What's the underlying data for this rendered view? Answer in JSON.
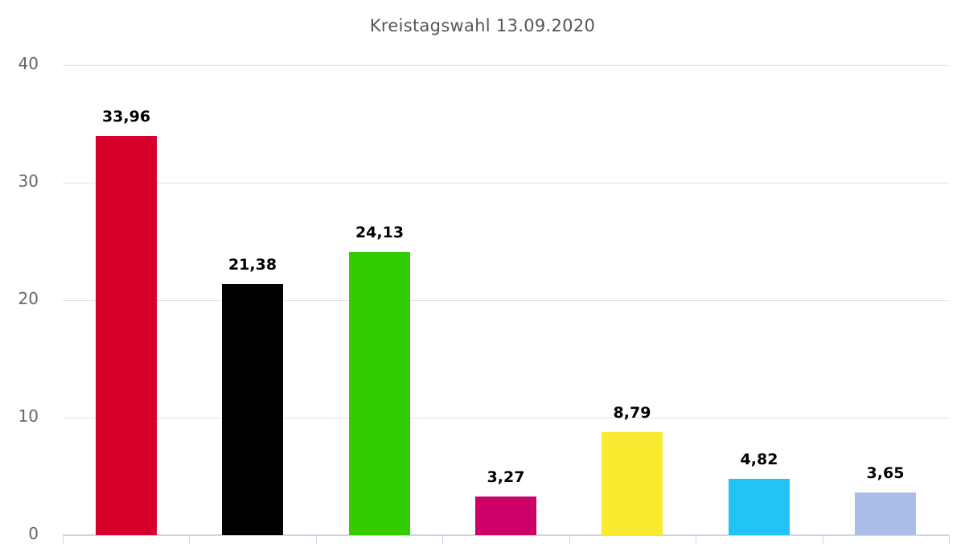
{
  "chart_data": {
    "type": "bar",
    "title": "Kreistagswahl 13.09.2020",
    "xlabel": "",
    "ylabel": "",
    "ylim": [
      0,
      40
    ],
    "yticks": [
      "0",
      "10",
      "20",
      "30",
      "40"
    ],
    "grid": true,
    "legend": null,
    "categories": [
      "",
      "",
      "",
      "",
      "",
      "",
      ""
    ],
    "values": [
      33.96,
      21.38,
      24.13,
      3.27,
      8.79,
      4.82,
      3.65
    ],
    "value_labels": [
      "33,96",
      "21,38",
      "24,13",
      "3,27",
      "8,79",
      "4,82",
      "3,65"
    ],
    "colors": [
      "#d6002a",
      "#000000",
      "#33cc00",
      "#cc0066",
      "#f9eb30",
      "#22c4f5",
      "#a9bde6"
    ]
  }
}
